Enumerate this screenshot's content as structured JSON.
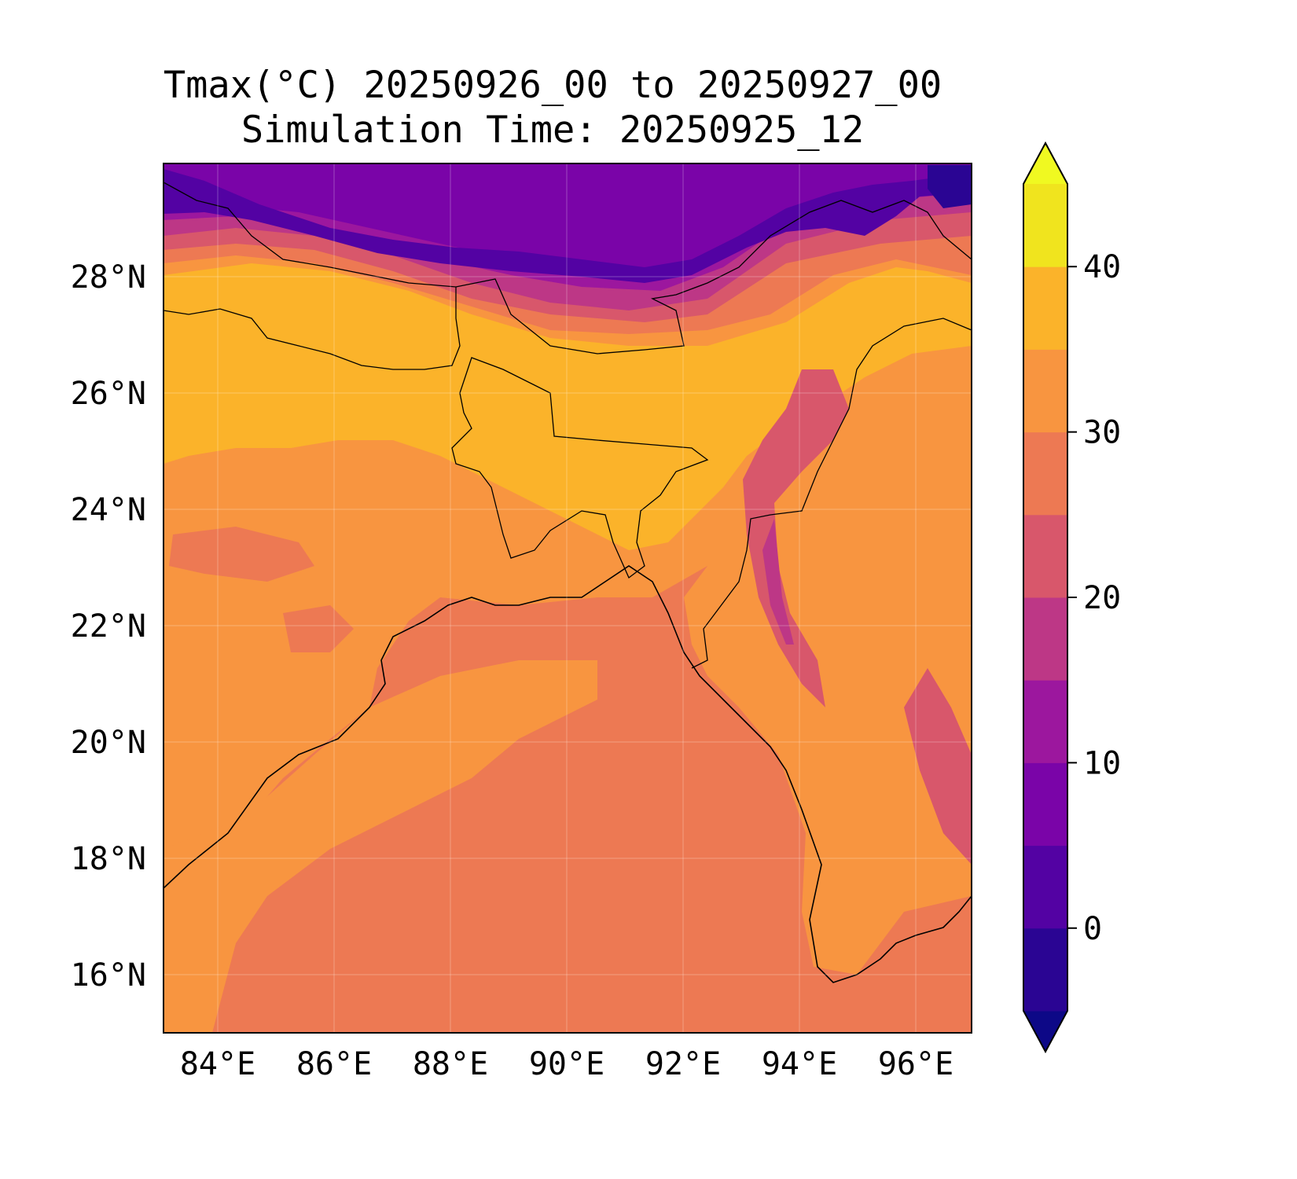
{
  "title": {
    "line1": "Tmax(°C) 20250926_00 to 20250927_00",
    "line2": "Simulation Time: 20250925_12"
  },
  "map": {
    "x_ticks": [
      "84°E",
      "86°E",
      "88°E",
      "90°E",
      "92°E",
      "94°E",
      "96°E"
    ],
    "y_ticks": [
      "28°N",
      "26°N",
      "24°N",
      "22°N",
      "20°N",
      "18°N",
      "16°N"
    ],
    "lon_range": [
      83.1,
      97.0
    ],
    "lat_range": [
      15.0,
      29.9
    ],
    "grid": true
  },
  "chart_data": {
    "type": "heatmap",
    "variable": "Tmax(°C)",
    "colorbar": {
      "levels": [
        -5,
        0,
        5,
        10,
        15,
        20,
        25,
        30,
        35,
        40,
        45
      ],
      "extend": "both",
      "tick_values": [
        0,
        10,
        20,
        30,
        40
      ],
      "tick_labels": [
        "0",
        "10",
        "20",
        "30",
        "40"
      ],
      "colors": [
        "#0d0887",
        "#2a0593",
        "#5302a3",
        "#7a04a8",
        "#9c179e",
        "#bd3786",
        "#d8576b",
        "#ed7953",
        "#f89540",
        "#fbb32a",
        "#f0e41e",
        "#f0f921"
      ]
    }
  }
}
